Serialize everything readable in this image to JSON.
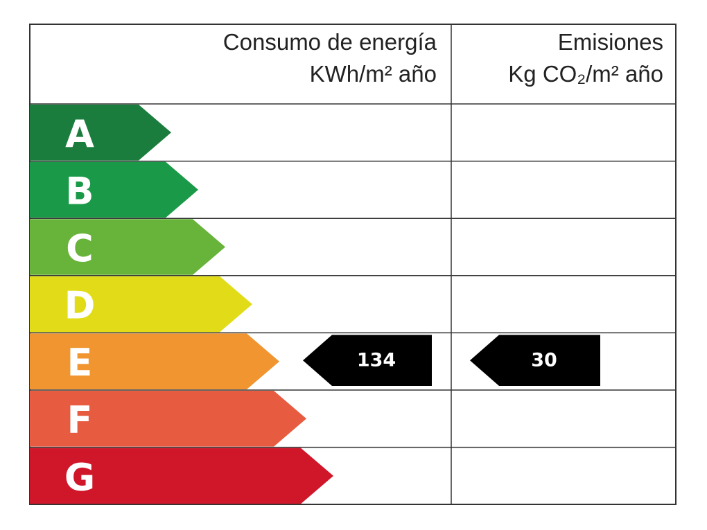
{
  "header": {
    "consumption_title": "Consumo de energía",
    "consumption_unit": "KWh/m² año",
    "emissions_title": "Emisiones",
    "emissions_unit": "Kg CO₂/m² año"
  },
  "classes": [
    {
      "letter": "A",
      "color": "#1b7d3d"
    },
    {
      "letter": "B",
      "color": "#1a9a48"
    },
    {
      "letter": "C",
      "color": "#68b33a"
    },
    {
      "letter": "D",
      "color": "#e2dc18"
    },
    {
      "letter": "E",
      "color": "#f0952f"
    },
    {
      "letter": "F",
      "color": "#e75b40"
    },
    {
      "letter": "G",
      "color": "#cf1729"
    }
  ],
  "consumption": {
    "rating": "E",
    "value": 134
  },
  "emissions": {
    "rating": "E",
    "value": 30
  }
}
